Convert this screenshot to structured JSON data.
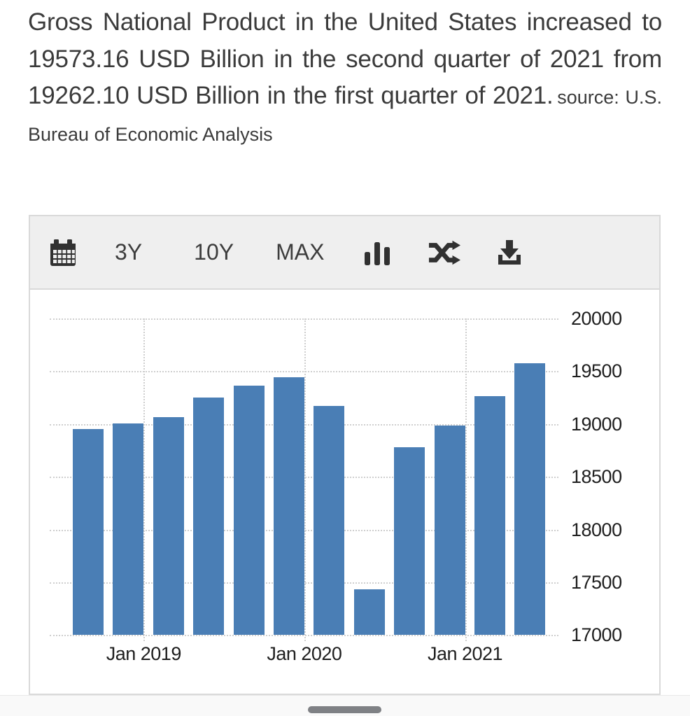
{
  "headline": {
    "main": "Gross National Product in the United States increased to 19573.16 USD Billion in the second quarter of 2021 from 19262.10 USD Billion in the first quarter of 2021.",
    "source_label": "source:",
    "source_name": "U.S. Bureau of Economic Analysis"
  },
  "toolbar": {
    "range_buttons": [
      "3Y",
      "10Y",
      "MAX"
    ],
    "icons": [
      "calendar-icon",
      "bar-chart-type-icon",
      "compare-shuffle-icon",
      "download-icon"
    ]
  },
  "chart_data": {
    "type": "bar",
    "title": "Gross National Product in the United States",
    "unit": "USD Billion",
    "categories": [
      "2018-Q3",
      "2018-Q4",
      "2019-Q1",
      "2019-Q2",
      "2019-Q3",
      "2019-Q4",
      "2020-Q1",
      "2020-Q2",
      "2020-Q3",
      "2020-Q4",
      "2021-Q1",
      "2021-Q2"
    ],
    "values": [
      18950,
      19008,
      19063,
      19253,
      19367,
      19440,
      19169,
      17432,
      18783,
      18989,
      19262.1,
      19573.16
    ],
    "bar_color": "#4a7eb5",
    "ylim": [
      17000,
      20000
    ],
    "y_ticks": [
      17000,
      17500,
      18000,
      18500,
      19000,
      19500,
      20000
    ],
    "x_tick_labels": [
      {
        "label": "Jan 2019",
        "index": 2
      },
      {
        "label": "Jan 2020",
        "index": 6
      },
      {
        "label": "Jan 2021",
        "index": 10
      }
    ],
    "grid": "dotted",
    "legend": "none",
    "y_axis_position": "right"
  },
  "colors": {
    "toolbar_bg": "#efefef",
    "panel_border": "#d9d9d9",
    "gridline": "#cfcfcf",
    "text_dark": "#3b3b3b",
    "axis_text": "#1f1f1f",
    "bottom_strip_bg": "#f9f9f9",
    "home_pill": "#7f8185"
  }
}
